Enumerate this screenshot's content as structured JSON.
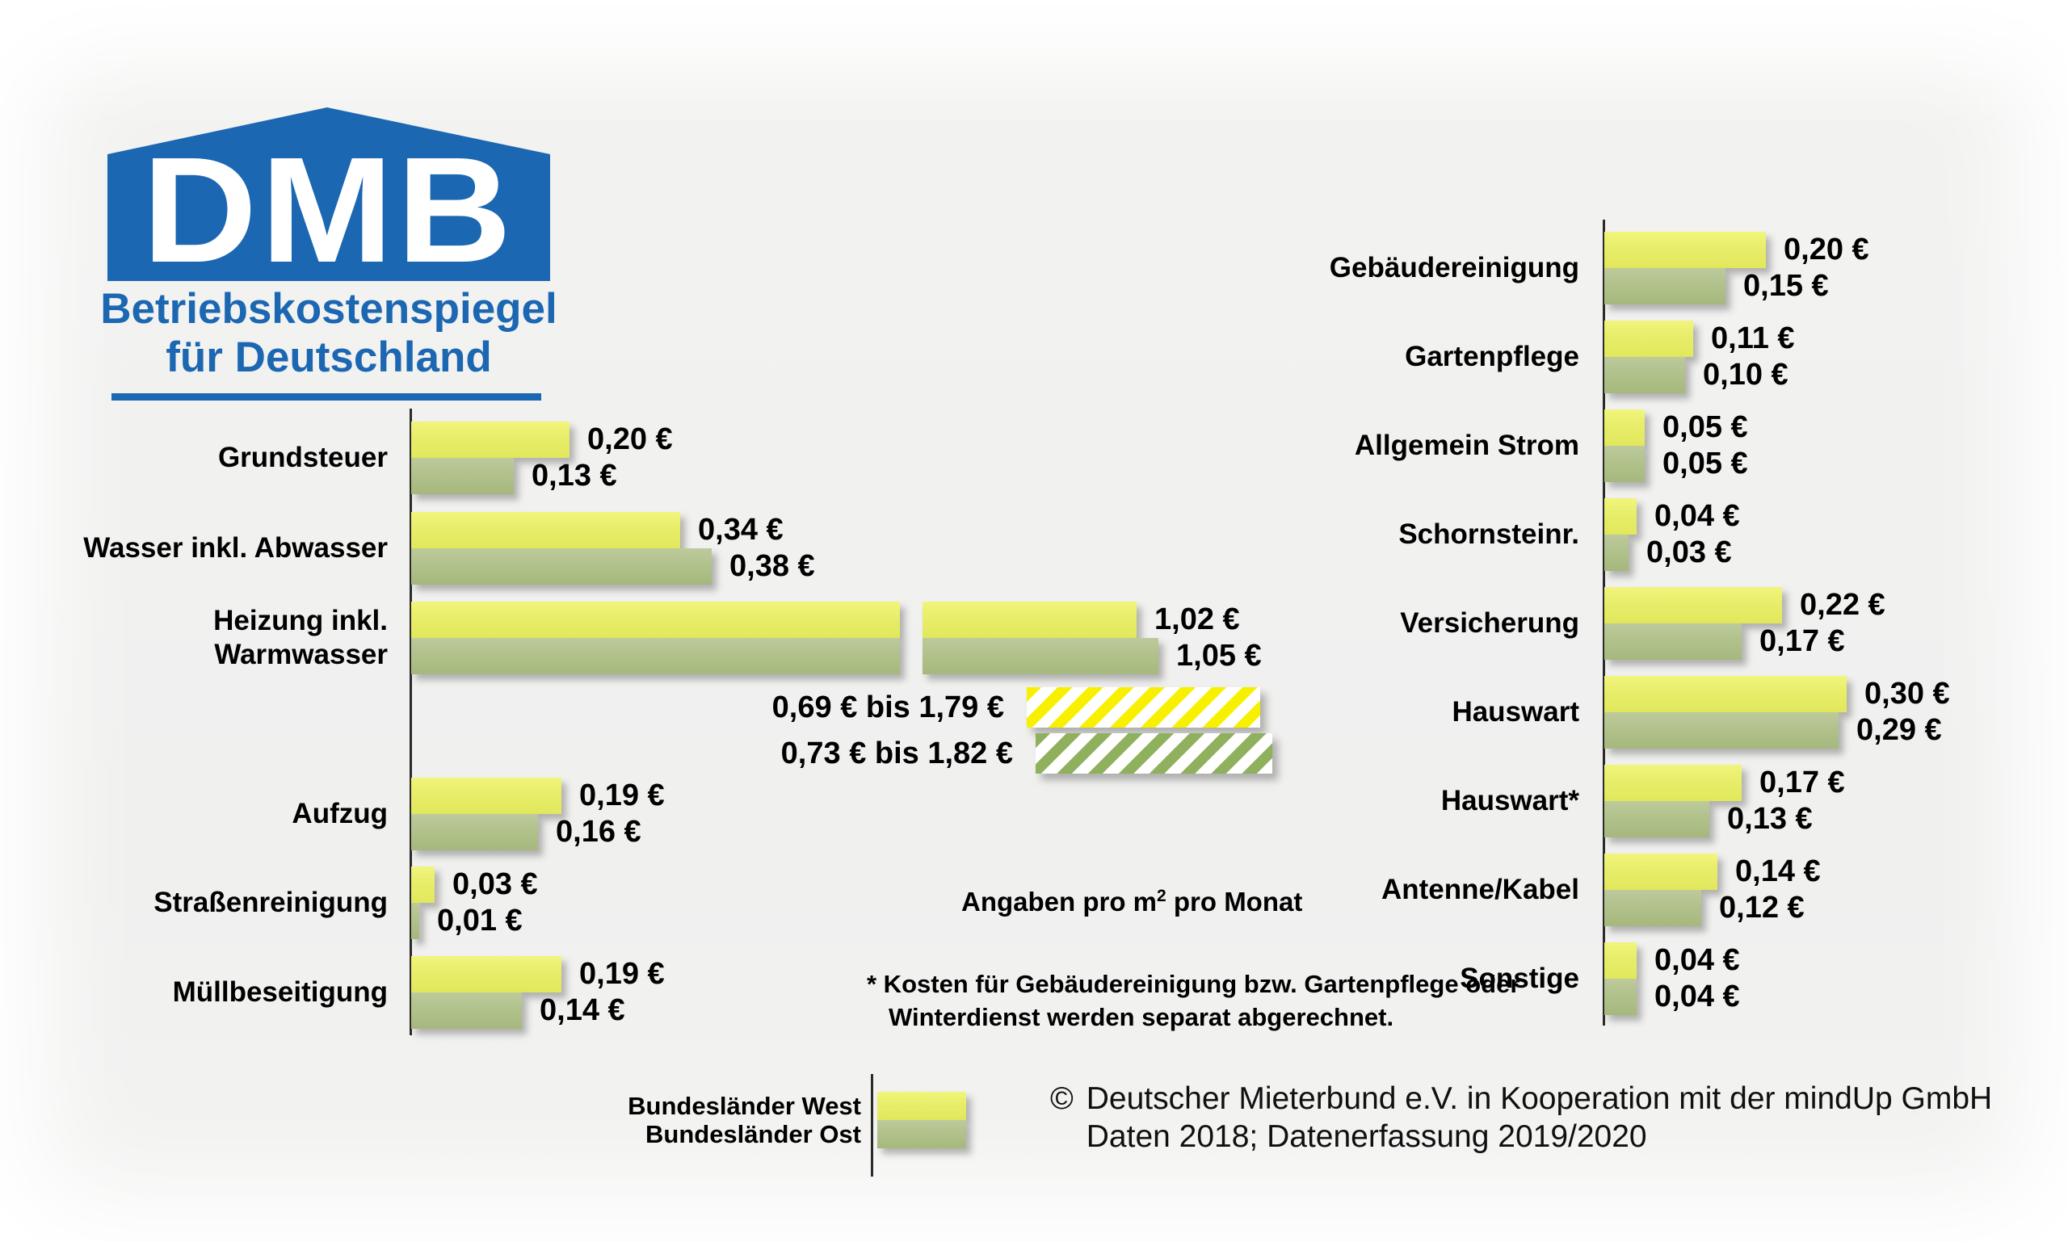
{
  "logo": {
    "acronym": "DMB",
    "subtitle_line1": "Betriebskostenspiegel",
    "subtitle_line2": "für Deutschland"
  },
  "legend": {
    "west_label": "Bundesländer West",
    "ost_label": "Bundesländer Ost"
  },
  "annotations": {
    "unit_note_prefix": "Angaben pro m",
    "unit_note_sup": "2",
    "unit_note_suffix": " pro Monat",
    "footnote_line1": "* Kosten für Gebäudereinigung bzw. Gartenpflege oder",
    "footnote_line2": "Winterdienst werden separat abgerechnet.",
    "copyright_symbol": "©",
    "copyright_line1": "Deutscher Mieterbund e.V. in Kooperation mit der mindUp GmbH",
    "copyright_line2": "Daten 2018; Datenerfassung 2019/2020"
  },
  "colors": {
    "brand_blue": "#1c67b2",
    "bar_west": "#e8ed6a",
    "bar_ost": "#b0c18a",
    "hatch_west": "#f7f100",
    "hatch_ost": "#8fb15e",
    "text": "#000000"
  },
  "chart_data": {
    "type": "bar",
    "orientation": "horizontal",
    "title": "Betriebskostenspiegel für Deutschland",
    "unit": "€ pro m² pro Monat",
    "series_names": [
      "Bundesländer West",
      "Bundesländer Ost"
    ],
    "panels": {
      "left": {
        "items": [
          {
            "category": "Grundsteuer",
            "lines": [
              "Grundsteuer"
            ],
            "west": 0.2,
            "ost": 0.13,
            "west_label": "0,20 €",
            "ost_label": "0,13 €"
          },
          {
            "category": "Wasser inkl. Abwasser",
            "lines": [
              "Wasser inkl. Abwasser"
            ],
            "west": 0.34,
            "ost": 0.38,
            "west_label": "0,34 €",
            "ost_label": "0,38 €"
          },
          {
            "category": "Heizung inkl. Warmwasser",
            "lines": [
              "Heizung inkl.",
              "Warmwasser"
            ],
            "west": 1.02,
            "ost": 1.05,
            "west_label": "1,02 €",
            "ost_label": "1,05 €",
            "broken_axis": true
          },
          {
            "category": "Heizung inkl. Warmwasser (Spanne)",
            "type": "range",
            "west_range": [
              0.69,
              1.79
            ],
            "ost_range": [
              0.73,
              1.82
            ],
            "west_label": "0,69 € bis 1,79 €",
            "ost_label": "0,73 € bis 1,82 €"
          },
          {
            "category": "Aufzug",
            "lines": [
              "Aufzug"
            ],
            "west": 0.19,
            "ost": 0.16,
            "west_label": "0,19 €",
            "ost_label": "0,16 €"
          },
          {
            "category": "Straßenreinigung",
            "lines": [
              "Straßenreinigung"
            ],
            "west": 0.03,
            "ost": 0.01,
            "west_label": "0,03 €",
            "ost_label": "0,01 €"
          },
          {
            "category": "Müllbeseitigung",
            "lines": [
              "Müllbeseitigung"
            ],
            "west": 0.19,
            "ost": 0.14,
            "west_label": "0,19 €",
            "ost_label": "0,14 €"
          }
        ]
      },
      "right": {
        "items": [
          {
            "category": "Gebäudereinigung",
            "lines": [
              "Gebäudereinigung"
            ],
            "west": 0.2,
            "ost": 0.15,
            "west_label": "0,20 €",
            "ost_label": "0,15 €"
          },
          {
            "category": "Gartenpflege",
            "lines": [
              "Gartenpflege"
            ],
            "west": 0.11,
            "ost": 0.1,
            "west_label": "0,11 €",
            "ost_label": "0,10 €"
          },
          {
            "category": "Allgemein Strom",
            "lines": [
              "Allgemein Strom"
            ],
            "west": 0.05,
            "ost": 0.05,
            "west_label": "0,05 €",
            "ost_label": "0,05 €"
          },
          {
            "category": "Schornsteinr.",
            "lines": [
              "Schornsteinr."
            ],
            "west": 0.04,
            "ost": 0.03,
            "west_label": "0,04 €",
            "ost_label": "0,03 €"
          },
          {
            "category": "Versicherung",
            "lines": [
              "Versicherung"
            ],
            "west": 0.22,
            "ost": 0.17,
            "west_label": "0,22 €",
            "ost_label": "0,17 €"
          },
          {
            "category": "Hauswart",
            "lines": [
              "Hauswart"
            ],
            "west": 0.3,
            "ost": 0.29,
            "west_label": "0,30 €",
            "ost_label": "0,29 €"
          },
          {
            "category": "Hauswart*",
            "lines": [
              "Hauswart*"
            ],
            "west": 0.17,
            "ost": 0.13,
            "west_label": "0,17 €",
            "ost_label": "0,13 €"
          },
          {
            "category": "Antenne/Kabel",
            "lines": [
              "Antenne/Kabel"
            ],
            "west": 0.14,
            "ost": 0.12,
            "west_label": "0,14 €",
            "ost_label": "0,12 €"
          },
          {
            "category": "Sonstige",
            "lines": [
              "Sonstige"
            ],
            "west": 0.04,
            "ost": 0.04,
            "west_label": "0,04 €",
            "ost_label": "0,04 €"
          }
        ]
      }
    }
  }
}
